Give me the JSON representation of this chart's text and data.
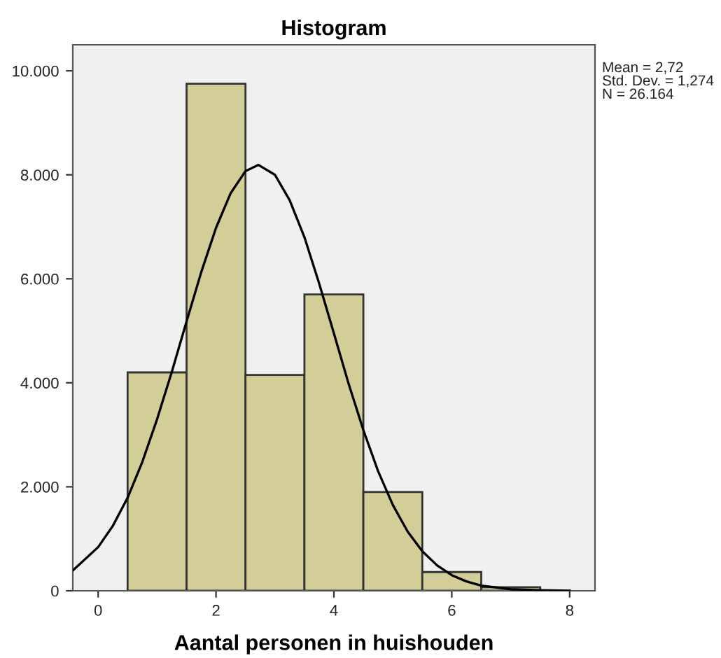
{
  "chart_data": {
    "type": "histogram",
    "title": "Histogram",
    "xlabel": "Aantal personen in huishouden",
    "bins": [
      0.5,
      1.5,
      2.5,
      3.5,
      4.5,
      5.5,
      6.5,
      7.5
    ],
    "values": [
      4200,
      9750,
      4150,
      5700,
      1900,
      360,
      70
    ],
    "color": "#d3ce98",
    "series": [
      {
        "type": "line",
        "color": "#000000",
        "x": [
          -0.43,
          0,
          0.25,
          0.5,
          0.75,
          1,
          1.25,
          1.5,
          1.75,
          2,
          2.25,
          2.5,
          2.72,
          3,
          3.25,
          3.5,
          3.75,
          4,
          4.25,
          4.5,
          4.75,
          5,
          5.25,
          5.5,
          5.75,
          6,
          6.25,
          6.5,
          7,
          7.5,
          8
        ],
        "values": [
          390,
          840,
          1250,
          1790,
          2480,
          3300,
          4210,
          5180,
          6130,
          6980,
          7650,
          8070,
          8190,
          8000,
          7510,
          6800,
          5910,
          4950,
          3980,
          3090,
          2300,
          1650,
          1140,
          760,
          490,
          300,
          180,
          100,
          30,
          10,
          0
        ]
      }
    ],
    "xlim": [
      -0.43,
      8.43
    ],
    "xticks": [
      0,
      2,
      4,
      6,
      8
    ],
    "ylim": [
      0,
      10500
    ],
    "yticks": [
      0,
      {
        "value": 2000,
        "label": "2.000"
      },
      {
        "value": 4000,
        "label": "4.000"
      },
      {
        "value": 6000,
        "label": "6.000"
      },
      {
        "value": 8000,
        "label": "8.000"
      },
      {
        "value": 10000,
        "label": "10.000"
      }
    ],
    "grid": false,
    "annotations": [
      "Mean = 2,72",
      "Std. Dev. = 1,274",
      "N = 26.164"
    ]
  }
}
